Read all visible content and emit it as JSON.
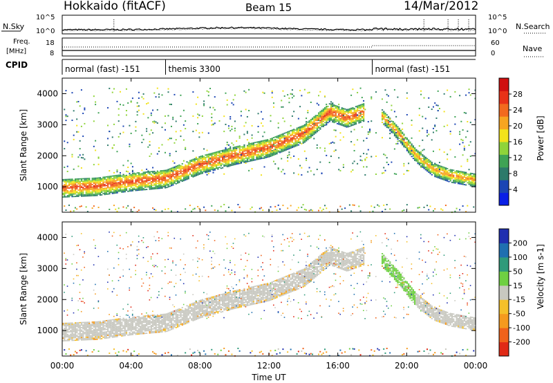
{
  "header": {
    "station": "Hokkaido (fitACF)",
    "beam": "Beam 15",
    "date": "14/Mar/2012"
  },
  "noise_panel": {
    "left_label": "N.Sky",
    "right_label": "N.Search",
    "left_ticks": [
      "10^5",
      "10^0"
    ],
    "right_ticks": [
      "10^5",
      "10^0"
    ]
  },
  "freq_panel": {
    "left_label_line1": "Freq.",
    "left_label_line2": "[MHz]",
    "left_ticks": [
      "18",
      "8"
    ],
    "right_label": "Nave",
    "right_ticks": [
      "60",
      "0"
    ]
  },
  "cpid_panel": {
    "label": "CPID",
    "segments": [
      {
        "start_hour": 0.0,
        "end_hour": 6.0,
        "text": "normal (fast) -151"
      },
      {
        "start_hour": 6.0,
        "end_hour": 18.0,
        "text": "themis 3300"
      },
      {
        "start_hour": 18.0,
        "end_hour": 24.0,
        "text": "normal (fast) -151"
      }
    ]
  },
  "x_axis": {
    "label": "Time UT",
    "ticks": [
      "00:00",
      "04:00",
      "08:00",
      "12:00",
      "16:00",
      "20:00",
      "00:00"
    ]
  },
  "power_panel": {
    "ylabel": "Slant Range [km]",
    "yticks": [
      "1000",
      "2000",
      "3000",
      "4000"
    ],
    "colorbar_label": "Power [dB]",
    "colorbar_ticks": [
      "4",
      "8",
      "12",
      "16",
      "20",
      "24",
      "28"
    ],
    "colorbar_colors": [
      "#0a1fe6",
      "#1b45b4",
      "#2d7a6a",
      "#3fa355",
      "#8fd43a",
      "#f2e21a",
      "#f7a520",
      "#f26a1e",
      "#e83218",
      "#d01010"
    ]
  },
  "velocity_panel": {
    "ylabel": "Slant Range [km]",
    "yticks": [
      "1000",
      "2000",
      "3000",
      "4000"
    ],
    "colorbar_label": "Velocity [m s-1]",
    "colorbar_ticks": [
      "200",
      "100",
      "50",
      "15",
      "-15",
      "-50",
      "-100",
      "-200"
    ],
    "colorbar_colors": [
      "#1f2fb0",
      "#1f6fb0",
      "#2f9a7a",
      "#6fd042",
      "#c8c8c0",
      "#f5c02a",
      "#f59a1e",
      "#f0621a",
      "#e02a16"
    ]
  },
  "chart_data": {
    "type": "heatmap",
    "x_unit": "hours UT",
    "xlim": [
      0,
      24
    ],
    "ylim_km": [
      180,
      4500
    ],
    "power_bands": [
      {
        "hours": [
          0,
          2,
          4,
          6,
          8,
          10,
          12,
          14,
          15.5,
          16.5,
          17.5
        ],
        "range_km": [
          950,
          1000,
          1150,
          1250,
          1700,
          2000,
          2250,
          2700,
          3400,
          3200,
          3400
        ],
        "thickness_km": 300,
        "level_db": 26
      },
      {
        "hours": [
          18.5,
          19.5,
          20.5,
          21.5,
          22.5,
          24
        ],
        "range_km": [
          3300,
          2700,
          2000,
          1550,
          1350,
          1200
        ],
        "thickness_km": 220,
        "level_db": 22
      }
    ],
    "velocity_ranges": {
      "min": -200,
      "max": 200
    }
  }
}
